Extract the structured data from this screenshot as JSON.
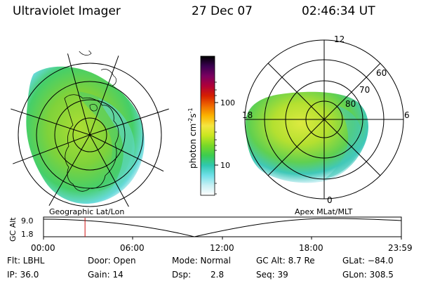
{
  "header": {
    "instrument": "Ultraviolet Imager",
    "date": "27 Dec 07",
    "time": "02:46:34 UT"
  },
  "colorbar": {
    "label": "photon cm",
    "label_exp1": "-2",
    "label_mid": "s",
    "label_exp2": "-1",
    "ticks": [
      "100",
      "10"
    ],
    "colors": [
      "#000000",
      "#3a0050",
      "#7b0060",
      "#b00038",
      "#d62000",
      "#ef6a00",
      "#fbb400",
      "#f5e640",
      "#c8e620",
      "#78d828",
      "#3ccc50",
      "#30c8b0",
      "#70e0e8",
      "#c8f0f4",
      "#ffffff"
    ]
  },
  "left_map": {
    "label": "Geographic Lat/Lon"
  },
  "right_map": {
    "label": "Apex MLat/MLT",
    "mlt_labels": {
      "top": "12",
      "left": "18",
      "right": "6",
      "bottom": "0"
    },
    "lat_labels": [
      "60",
      "70",
      "80"
    ]
  },
  "altitude_plot": {
    "ylabel": "GC Alt",
    "y_ticks": [
      "9.0",
      "1.8"
    ],
    "x_ticks": [
      "00:00",
      "06:00",
      "12:00",
      "18:00",
      "23:59"
    ],
    "current_time_fraction": 0.116
  },
  "info": {
    "flt": "Flt: LBHL",
    "door": "Door: Open",
    "mode": "Mode: Normal",
    "gc_alt": "GC Alt: 8.7 Re",
    "glat": "GLat: −84.0",
    "ip": "IP: 36.0",
    "gain": "Gain: 14",
    "dsp_label": "Dsp:",
    "dsp_value": "2.8",
    "seq": "Seq: 39",
    "glon": "GLon: 308.5"
  }
}
